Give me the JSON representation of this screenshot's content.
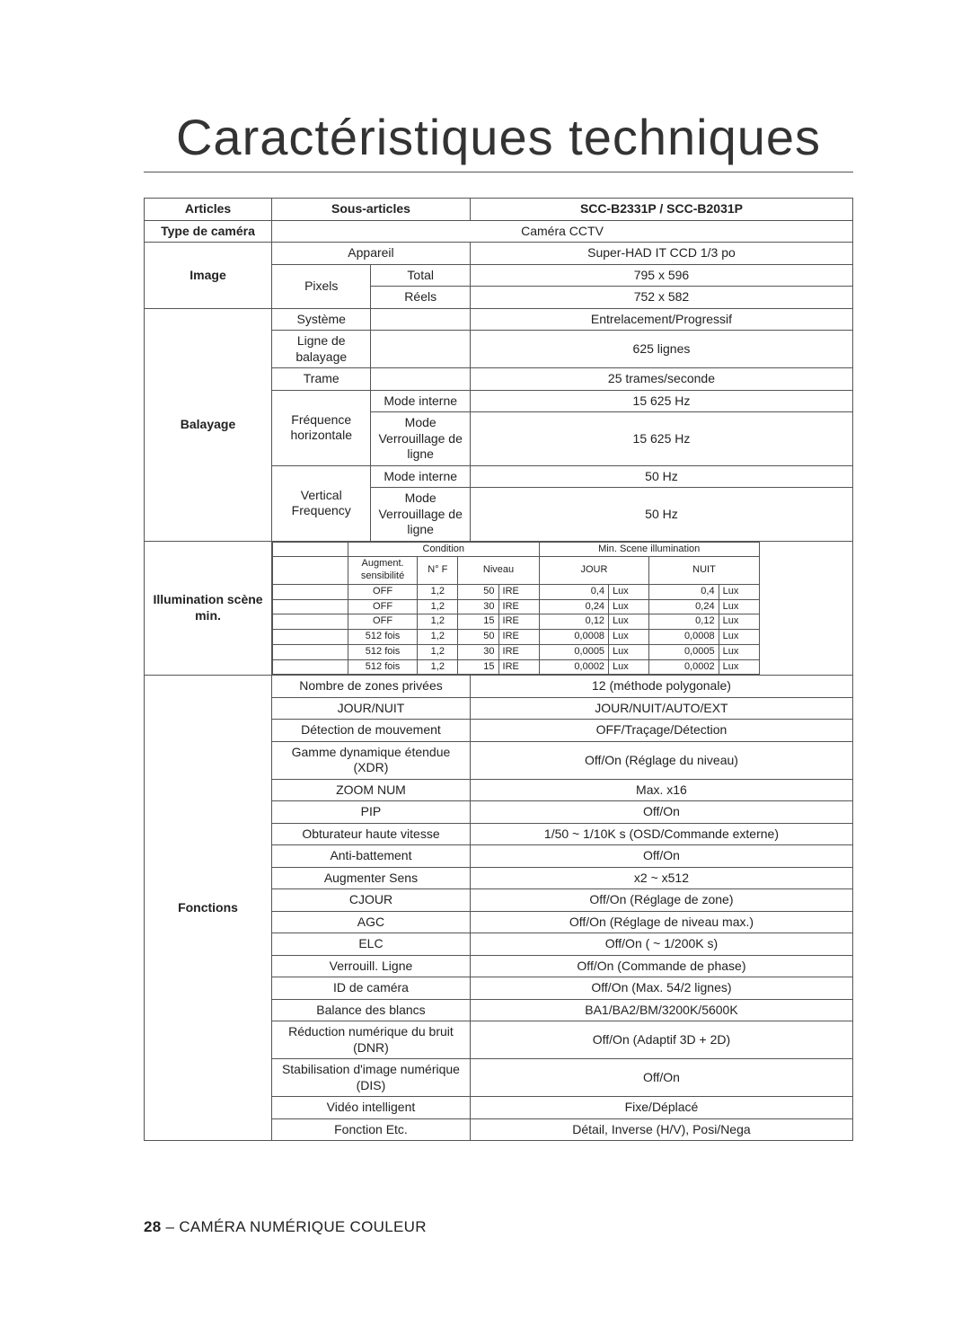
{
  "page": {
    "title": "Caractéristiques techniques",
    "footer_number": "28",
    "footer_sep": " – ",
    "footer_text": "CAMÉRA NUMÉRIQUE COULEUR"
  },
  "header": {
    "articles": "Articles",
    "sous_articles": "Sous-articles",
    "model": "SCC-B2331P / SCC-B2031P"
  },
  "r": {
    "type_de_camera_l": "Type de caméra",
    "type_de_camera_v": "Caméra CCTV",
    "image_l": "Image",
    "appareil": "Appareil",
    "appareil_v": "Super-HAD IT CCD 1/3 po",
    "pixels": "Pixels",
    "pixels_total": "Total",
    "pixels_total_v": "795 x 596",
    "pixels_reels": "Réels",
    "pixels_reels_v": "752 x 582",
    "balayage_l": "Balayage",
    "systeme": "Système",
    "systeme_v": "Entrelacement/Progressif",
    "ligne_balayage": "Ligne de balayage",
    "ligne_balayage_v": "625 lignes",
    "trame": "Trame",
    "trame_v": "25 trames/seconde",
    "freq_h": "Fréquence horizontale",
    "mode_interne": "Mode interne",
    "mode_verr": "Mode Verrouillage de ligne",
    "fh_int_v": "15 625 Hz",
    "fh_verr_v": "15 625 Hz",
    "freq_v": "Vertical Frequency",
    "fv_int_v": "50 Hz",
    "fv_verr_v": "50 Hz",
    "illum_l": "Illumination scène min.",
    "fonctions_l": "Fonctions",
    "f": {
      "nzp": "Nombre de zones privées",
      "nzp_v": "12 (méthode polygonale)",
      "jn": "JOUR/NUIT",
      "jn_v": "JOUR/NUIT/AUTO/EXT",
      "det": "Détection de mouvement",
      "det_v": "OFF/Traçage/Détection",
      "xdr": "Gamme dynamique étendue (XDR)",
      "xdr_v": "Off/On (Réglage du niveau)",
      "zoom": "ZOOM NUM",
      "zoom_v": "Max. x16",
      "pip": "PIP",
      "pip_v": "Off/On",
      "ohv": "Obturateur haute vitesse",
      "ohv_v": "1/50 ~ 1/10K s (OSD/Commande externe)",
      "anti": "Anti-battement",
      "anti_v": "Off/On",
      "aug": "Augmenter Sens",
      "aug_v": "x2 ~ x512",
      "cj": "CJOUR",
      "cj_v": "Off/On (Réglage de zone)",
      "agc": "AGC",
      "agc_v": "Off/On (Réglage de niveau max.)",
      "elc": "ELC",
      "elc_v": "Off/On ( ~ 1/200K s)",
      "verr": "Verrouill. Ligne",
      "verr_v": "Off/On (Commande de phase)",
      "idc": "ID de caméra",
      "idc_v": "Off/On (Max. 54/2 lignes)",
      "bb": "Balance des blancs",
      "bb_v": "BA1/BA2/BM/3200K/5600K",
      "dnr": "Réduction numérique du bruit (DNR)",
      "dnr_v": "Off/On (Adaptif 3D + 2D)",
      "dis": "Stabilisation d'image numérique (DIS)",
      "dis_v": "Off/On",
      "vi": "Vidéo intelligent",
      "vi_v": "Fixe/Déplacé",
      "etc": "Fonction Etc.",
      "etc_v": "Détail, Inverse (H/V), Posi/Nega"
    }
  },
  "illum": {
    "condition": "Condition",
    "min_scene": "Min. Scene illumination",
    "aug": "Augment. sensibilité",
    "nf": "N° F",
    "niveau": "Niveau",
    "jour": "JOUR",
    "nuit": "NUIT",
    "ire": "IRE",
    "lux": "Lux",
    "rows": [
      {
        "a": "OFF",
        "nf": "1,2",
        "lv": "50",
        "j": "0,4",
        "n": "0,4"
      },
      {
        "a": "OFF",
        "nf": "1,2",
        "lv": "30",
        "j": "0,24",
        "n": "0,24"
      },
      {
        "a": "OFF",
        "nf": "1,2",
        "lv": "15",
        "j": "0,12",
        "n": "0,12"
      },
      {
        "a": "512 fois",
        "nf": "1,2",
        "lv": "50",
        "j": "0,0008",
        "n": "0,0008"
      },
      {
        "a": "512 fois",
        "nf": "1,2",
        "lv": "30",
        "j": "0,0005",
        "n": "0,0005"
      },
      {
        "a": "512 fois",
        "nf": "1,2",
        "lv": "15",
        "j": "0,0002",
        "n": "0,0002"
      }
    ]
  },
  "layout": {
    "col1_pct": 18,
    "col2a_pct": 14,
    "col2b_pct": 14,
    "col3_pct": 54
  }
}
